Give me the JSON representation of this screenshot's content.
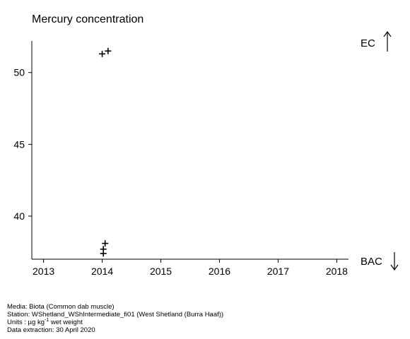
{
  "chart_data": {
    "type": "scatter",
    "title": "Mercury concentration",
    "xlabel": "",
    "ylabel": "",
    "xlim": [
      2012.8,
      2018.2
    ],
    "ylim": [
      37.0,
      52.2
    ],
    "x_ticks": [
      "2013",
      "2014",
      "2015",
      "2016",
      "2017",
      "2018"
    ],
    "y_ticks": [
      "40",
      "45",
      "50"
    ],
    "marker": "+",
    "series": [
      {
        "points": [
          {
            "x": 2014.0,
            "y": 51.3
          },
          {
            "x": 2014.1,
            "y": 51.5
          },
          {
            "x": 2014.05,
            "y": 38.1
          },
          {
            "x": 2014.02,
            "y": 37.7
          },
          {
            "x": 2014.02,
            "y": 37.4
          }
        ]
      }
    ],
    "reference_lines": [
      {
        "label": "EC",
        "direction": "up"
      },
      {
        "label": "BAC",
        "direction": "down"
      }
    ],
    "grid": false,
    "legend": "none"
  },
  "footer": {
    "media": "Media: Biota (Common dab muscle)",
    "station": "Station: WShetland_WShIntermediate_fi01 (West Shetland (Burra Haaf))",
    "units_prefix": "Units : µg kg",
    "units_exp": "-1",
    "units_suffix": " wet weight",
    "extraction": "Data extraction: 30 April 2020"
  }
}
